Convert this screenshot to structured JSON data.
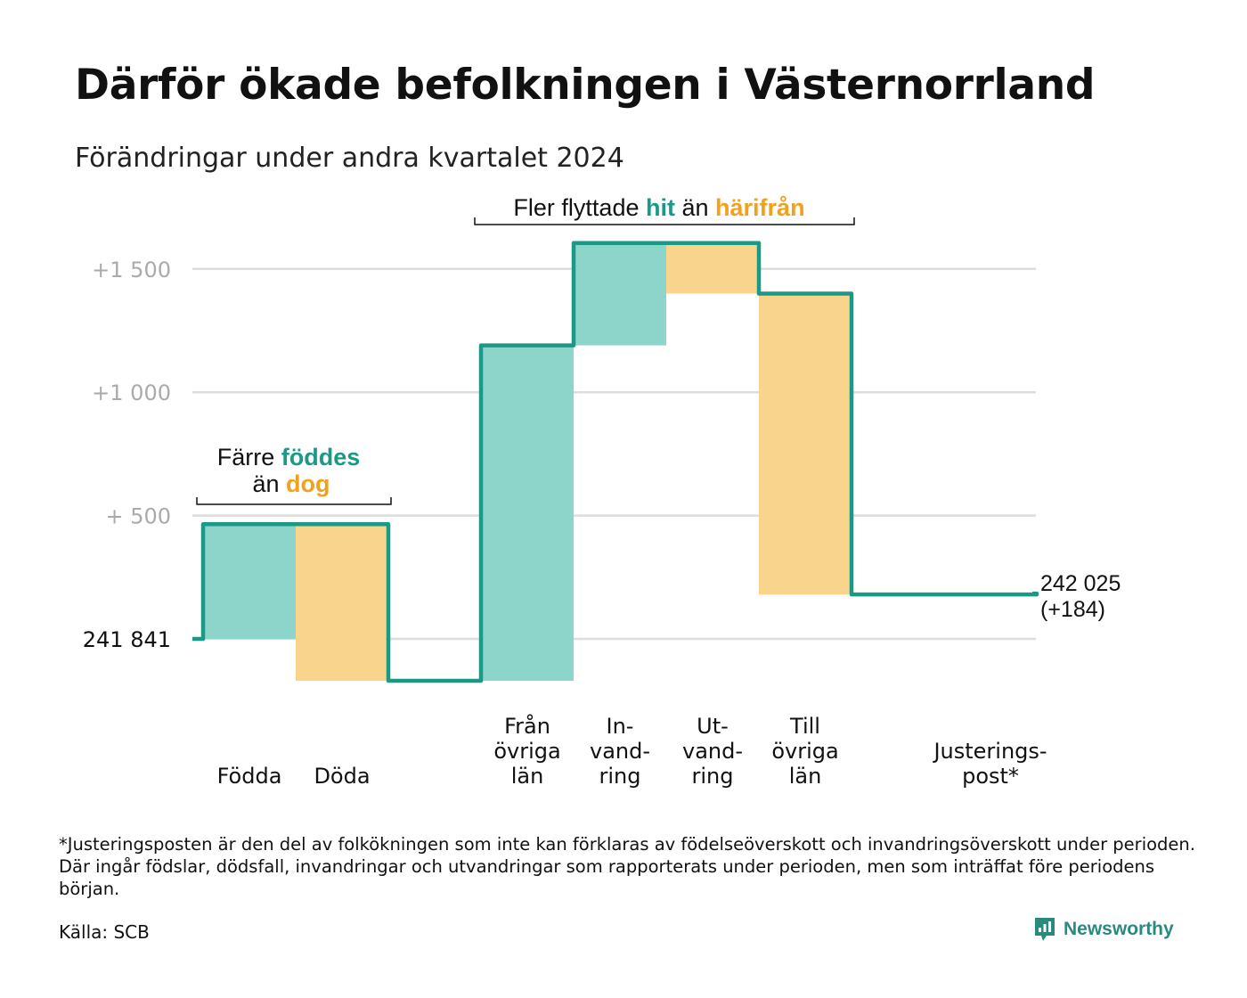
{
  "title": "Därför ökade befolkningen i Västernorrland",
  "subtitle": "Förändringar under andra kvartalet 2024",
  "footnote": "*Justeringsposten är den del av folkökningen som inte kan förklaras av födelseöverskott och invandringsöverskott under perioden. Där ingår födslar, dödsfall, invandringar och utvandringar som rapporterats under perioden, men som inträffat före periodens början.",
  "source": "Källa: SCB",
  "brand": "Newsworthy",
  "colors": {
    "teal_line": "#1a9a86",
    "teal_fill": "#8dd5cb",
    "orange_fill": "#f9d48c",
    "orange_text": "#f2a11d",
    "teal_text": "#1a9a86",
    "grid": "#dddddd",
    "tick_text": "#aaaaaa"
  },
  "chart_data": {
    "type": "waterfall",
    "start_value": 241841,
    "end_value": 242025,
    "end_label": [
      "242 025",
      "(+184)"
    ],
    "ylim": [
      -170,
      1600
    ],
    "y_ticks": [
      {
        "value": 0,
        "label": "241   841",
        "dark": true
      },
      {
        "value": 500,
        "label": "+   500",
        "dark": false
      },
      {
        "value": 1000,
        "label": "+1   000",
        "dark": false
      },
      {
        "value": 1500,
        "label": "+1   500",
        "dark": false
      }
    ],
    "steps": [
      {
        "category": [
          "Födda"
        ],
        "change": 465,
        "kind": "in"
      },
      {
        "category": [
          "Döda"
        ],
        "change": -635,
        "kind": "out"
      },
      {
        "category": [],
        "change": 0,
        "kind": "gap"
      },
      {
        "category": [
          "Från",
          "övriga",
          "län"
        ],
        "change": 1360,
        "kind": "in"
      },
      {
        "category": [
          "In-",
          "vand-",
          "ring"
        ],
        "change": 415,
        "kind": "in"
      },
      {
        "category": [
          "Ut-",
          "vand-",
          "ring"
        ],
        "change": -205,
        "kind": "out"
      },
      {
        "category": [
          "Till",
          "övriga",
          "län"
        ],
        "change": -1220,
        "kind": "out"
      },
      {
        "category": [],
        "change": 0,
        "kind": "gap"
      },
      {
        "category": [
          "Justerings-",
          "post*"
        ],
        "change": 4,
        "kind": "adjust"
      }
    ],
    "annotations": [
      {
        "parts": [
          {
            "text": "Färre ",
            "style": "plain"
          },
          {
            "text": "föddes",
            "style": "teal"
          }
        ],
        "parts2": [
          {
            "text": "än ",
            "style": "plain"
          },
          {
            "text": "dog",
            "style": "orange"
          }
        ]
      },
      {
        "parts": [
          {
            "text": "Fler flyttade ",
            "style": "plain"
          },
          {
            "text": "hit",
            "style": "teal"
          },
          {
            "text": " än ",
            "style": "plain"
          },
          {
            "text": "härifrån",
            "style": "orange"
          }
        ]
      }
    ]
  }
}
